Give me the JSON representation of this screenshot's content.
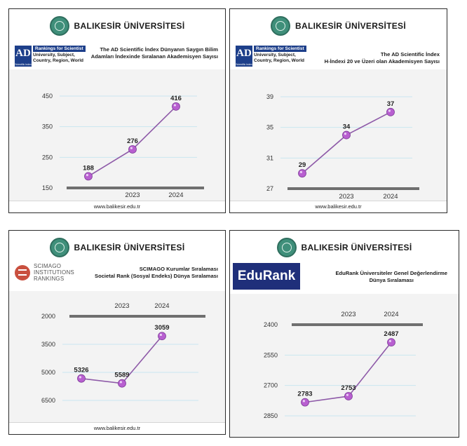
{
  "colors": {
    "line": "#8e5aa8",
    "marker": "#b85fd0",
    "axis": "#6f6f6f",
    "grid": "#c9e6f0"
  },
  "panels": [
    {
      "university": "BALIKESİR ÜNİVERSİTESİ",
      "logo": {
        "ad_letters": "AD",
        "ad_small": "Scientific Index",
        "tag": "Rankings for Scientist",
        "lines": [
          "University, Subject,",
          "Country, Region, World"
        ]
      },
      "desc": [
        "The AD Scientific İndex Dünyanın Saygın Bilim",
        "Adamları İndexinde Sıralanan Akademisyen Sayısı"
      ],
      "footer": "www.balikesir.edu.tr"
    },
    {
      "university": "BALIKESİR ÜNİVERSİTESİ",
      "logo": {
        "ad_letters": "AD",
        "ad_small": "Scientific Index",
        "tag": "Rankings for Scientist",
        "lines": [
          "University, Subject,",
          "Country, Region, World"
        ]
      },
      "desc": [
        "The AD Scientific İndex",
        "H-İndexi 20 ve Üzeri olan Akademisyen Sayısı"
      ],
      "footer": "www.balikesir.edu.tr"
    },
    {
      "university": "BALIKESİR ÜNİVERSİTESİ",
      "logo": {
        "lines": [
          "SCIMAGO",
          "INSTITUTIONS",
          "RANKINGS"
        ]
      },
      "desc": [
        "SCIMAGO Kurumlar Sıralaması",
        "Societal Rank (Sosyal Endeks) Dünya Sıralaması"
      ],
      "footer": "www.balikesir.edu.tr"
    },
    {
      "university": "BALIKESİR ÜNİVERSİTESİ",
      "logo": {
        "text": "EduRank"
      },
      "desc": [
        "EduRank Üniversiteler Genel Değerlendirme",
        "Dünya Sıralaması"
      ]
    }
  ],
  "chart_data": [
    {
      "type": "line",
      "x": [
        "",
        "2023",
        "2024"
      ],
      "values": [
        188,
        276,
        416
      ],
      "yticks": [
        "450",
        "350",
        "250",
        "150"
      ],
      "ylim": [
        150,
        450
      ],
      "inverted": false,
      "grid": true
    },
    {
      "type": "line",
      "x": [
        "",
        "2023",
        "2024"
      ],
      "values": [
        29,
        34,
        37
      ],
      "yticks": [
        "39",
        "35",
        "31",
        "27"
      ],
      "ylim": [
        27,
        39
      ],
      "inverted": false,
      "grid": true
    },
    {
      "type": "line",
      "x": [
        "",
        "2023",
        "2024"
      ],
      "values": [
        5326,
        5589,
        3059
      ],
      "yticks": [
        "2000",
        "3500",
        "5000",
        "6500"
      ],
      "ylim": [
        2000,
        6500
      ],
      "inverted": true,
      "grid": true
    },
    {
      "type": "line",
      "x": [
        "",
        "2023",
        "2024"
      ],
      "values": [
        2783,
        2753,
        2487
      ],
      "yticks": [
        "2400",
        "2550",
        "2700",
        "2850"
      ],
      "ylim": [
        2400,
        2850
      ],
      "inverted": true,
      "grid": true
    }
  ]
}
